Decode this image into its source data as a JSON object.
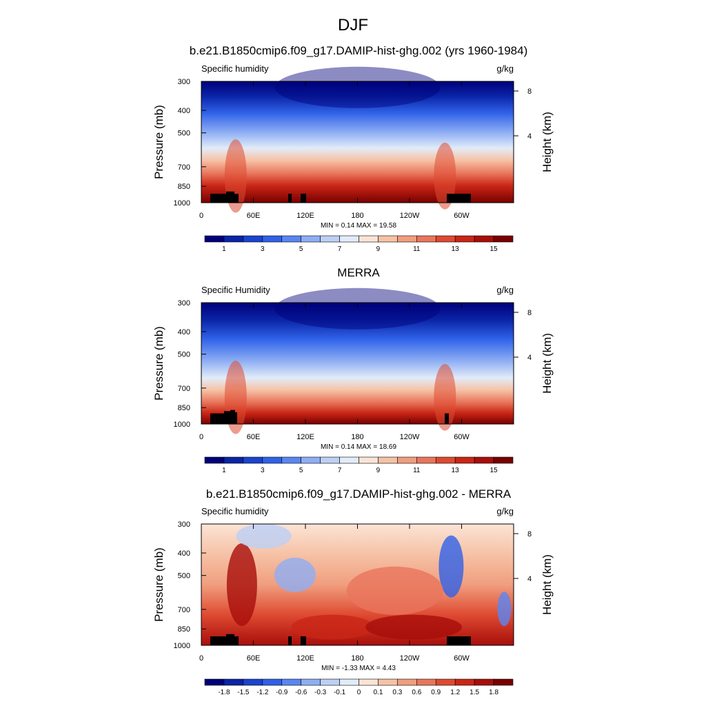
{
  "figure": {
    "season": "DJF"
  },
  "colorbars": {
    "humidity": {
      "colors": [
        "#00007a",
        "#0a24a6",
        "#1a44cc",
        "#2f62e8",
        "#5a86f2",
        "#8eaef4",
        "#bcd0f6",
        "#e2ecf8",
        "#fbe4d6",
        "#f6c2a6",
        "#f09e7e",
        "#e8765c",
        "#de4a32",
        "#c92616",
        "#a80e0a",
        "#780000"
      ],
      "labels": [
        "1",
        "3",
        "5",
        "7",
        "9",
        "11",
        "13",
        "15"
      ]
    },
    "difference": {
      "colors": [
        "#00007a",
        "#0a24a6",
        "#1a44cc",
        "#2f62e8",
        "#5a86f2",
        "#8eaef4",
        "#bcd0f6",
        "#e2ecf8",
        "#fbe4d6",
        "#f6c2a6",
        "#f09e7e",
        "#e8765c",
        "#de4a32",
        "#c92616",
        "#a80e0a",
        "#780000"
      ],
      "labels": [
        "-1.8",
        "-1.5",
        "-1.2",
        "-0.9",
        "-0.6",
        "-0.3",
        "-0.1",
        "0",
        "0.1",
        "0.3",
        "0.6",
        "0.9",
        "1.2",
        "1.5",
        "1.8"
      ]
    }
  },
  "chart_data": [
    {
      "type": "heatmap",
      "title": "b.e21.B1850cmip6.f09_g17.DAMIP-hist-ghg.002 (yrs 1960-1984)",
      "left_label": "Specific humidity",
      "right_label": "g/kg",
      "ylabel": "Pressure (mb)",
      "y2label": "Height (km)",
      "xticks": [
        "0",
        "60E",
        "120E",
        "180",
        "120W",
        "60W"
      ],
      "yticks": [
        "300",
        "400",
        "500",
        "700",
        "850",
        "1000"
      ],
      "y2ticks": [
        "8",
        "4"
      ],
      "stats_text": "MIN =   0.14  MAX =  19.58",
      "min": 0.14,
      "max": 19.58,
      "colorbar": "humidity"
    },
    {
      "type": "heatmap",
      "title": "MERRA",
      "left_label": "Specific Humidity",
      "right_label": "g/kg",
      "ylabel": "Pressure (mb)",
      "y2label": "Height (km)",
      "xticks": [
        "0",
        "60E",
        "120E",
        "180",
        "120W",
        "60W"
      ],
      "yticks": [
        "300",
        "400",
        "500",
        "700",
        "850",
        "1000"
      ],
      "y2ticks": [
        "8",
        "4"
      ],
      "stats_text": "MIN =   0.14  MAX =  18.69",
      "min": 0.14,
      "max": 18.69,
      "colorbar": "humidity"
    },
    {
      "type": "heatmap",
      "title": "b.e21.B1850cmip6.f09_g17.DAMIP-hist-ghg.002 - MERRA",
      "left_label": "Specific humidity",
      "right_label": "g/kg",
      "ylabel": "Pressure (mb)",
      "y2label": "Height (km)",
      "xticks": [
        "0",
        "60E",
        "120E",
        "180",
        "120W",
        "60W"
      ],
      "yticks": [
        "300",
        "400",
        "500",
        "700",
        "850",
        "1000"
      ],
      "y2ticks": [
        "8",
        "4"
      ],
      "stats_text": "MIN =  -1.33  MAX =   4.43",
      "min": -1.33,
      "max": 4.43,
      "colorbar": "difference"
    }
  ]
}
